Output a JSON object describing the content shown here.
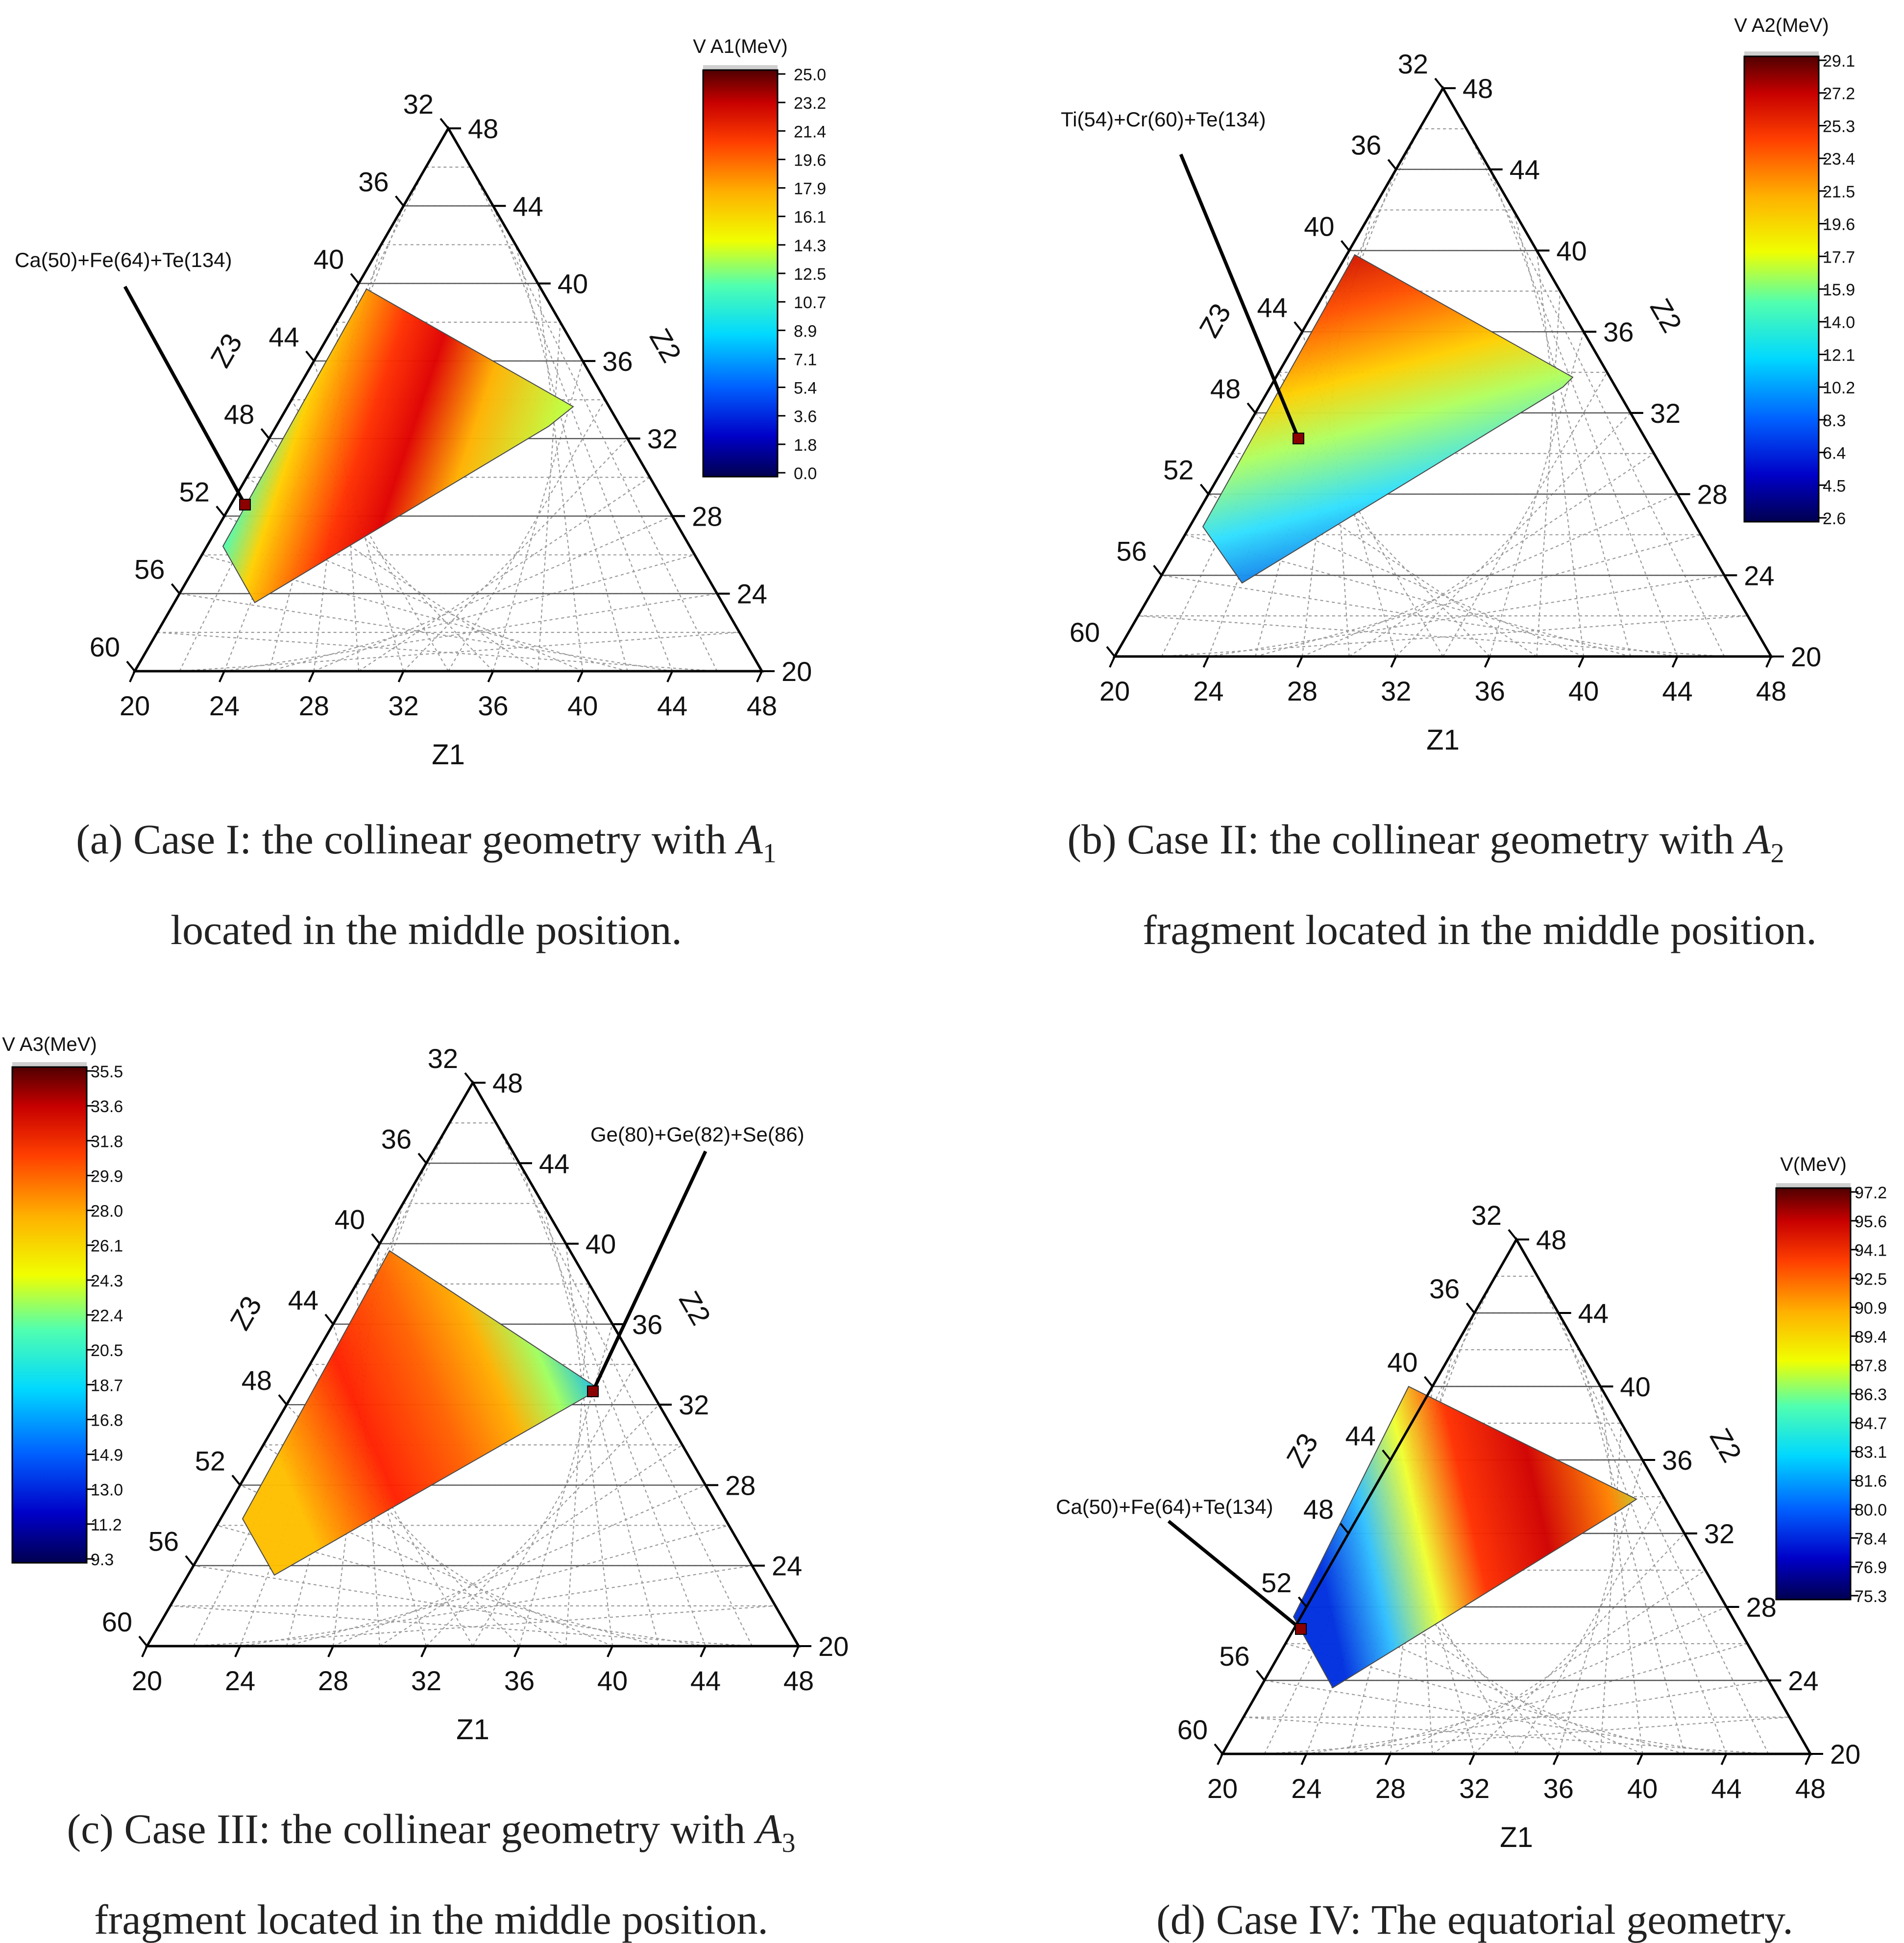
{
  "panels": [
    {
      "id": "a",
      "cbar_title": "V A1(MeV)",
      "cbar_ticks": [
        "25.0",
        "23.2",
        "21.4",
        "19.6",
        "17.9",
        "16.1",
        "14.3",
        "12.5",
        "10.7",
        "8.9",
        "7.1",
        "5.4",
        "3.6",
        "1.8",
        "0.0"
      ],
      "annotation": "Ca(50)+Fe(64)+Te(134)",
      "caption_line1": "(a) Case I: the collinear geometry with ",
      "caption_sym": "A",
      "caption_sub": "1",
      "caption_line2": "located in the middle position."
    },
    {
      "id": "b",
      "cbar_title": "V A2(MeV)",
      "cbar_ticks": [
        "29.1",
        "27.2",
        "25.3",
        "23.4",
        "21.5",
        "19.6",
        "17.7",
        "15.9",
        "14.0",
        "12.1",
        "10.2",
        "8.3",
        "6.4",
        "4.5",
        "2.6"
      ],
      "annotation": "Ti(54)+Cr(60)+Te(134)",
      "caption_line1": "(b) Case II: the collinear geometry with ",
      "caption_sym": "A",
      "caption_sub": "2",
      "caption_line2": "fragment located in the middle position."
    },
    {
      "id": "c",
      "cbar_title": "V A3(MeV)",
      "cbar_ticks": [
        "35.5",
        "33.6",
        "31.8",
        "29.9",
        "28.0",
        "26.1",
        "24.3",
        "22.4",
        "20.5",
        "18.7",
        "16.8",
        "14.9",
        "13.0",
        "11.2",
        "9.3"
      ],
      "annotation": "Ge(80)+Ge(82)+Se(86)",
      "caption_line1": "(c) Case III: the collinear geometry with ",
      "caption_sym": "A",
      "caption_sub": "3",
      "caption_line2": "fragment located in the middle position."
    },
    {
      "id": "d",
      "cbar_title": "V(MeV)",
      "cbar_ticks": [
        "97.2",
        "95.6",
        "94.1",
        "92.5",
        "90.9",
        "89.4",
        "87.8",
        "86.3",
        "84.7",
        "83.1",
        "81.6",
        "80.0",
        "78.4",
        "76.9",
        "75.3"
      ],
      "annotation": "Ca(50)+Fe(64)+Te(134)",
      "caption_line1": "(d) Case IV: The equatorial geometry.",
      "caption_sym": "",
      "caption_sub": "",
      "caption_line2": ""
    }
  ],
  "axes": {
    "z1_label": "Z1",
    "z2_label": "Z2",
    "z3_label": "Z3",
    "z1_ticks": [
      "20",
      "24",
      "28",
      "32",
      "36",
      "40",
      "44",
      "48"
    ],
    "z2_ticks": [
      "20",
      "24",
      "28",
      "32",
      "36",
      "40",
      "44",
      "48"
    ],
    "z3_ticks": [
      "60",
      "56",
      "52",
      "48",
      "44",
      "40",
      "36",
      "32"
    ]
  },
  "colors": {
    "scale": [
      "#000050",
      "#0000c8",
      "#0060ff",
      "#00d8ff",
      "#50ffb0",
      "#f0ff00",
      "#ffb000",
      "#ff4000",
      "#c80000",
      "#500000"
    ],
    "annotation_marker": "#8b0000"
  }
}
